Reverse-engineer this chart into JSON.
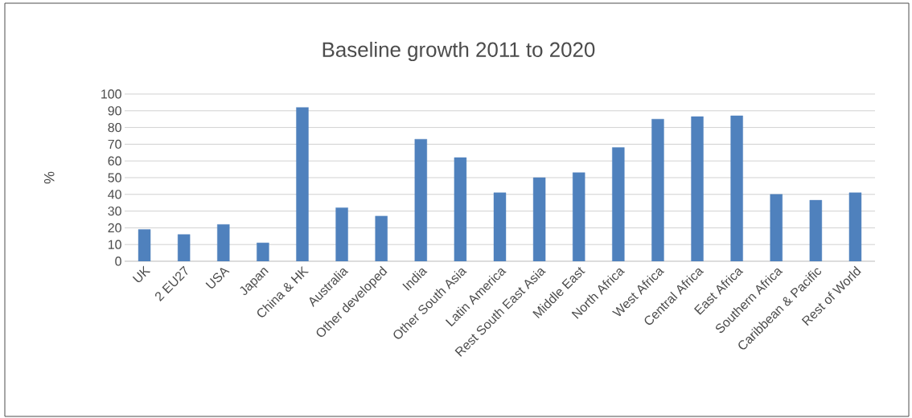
{
  "chart_data": {
    "type": "bar",
    "title": "Baseline growth 2011 to 2020",
    "ylabel": "%",
    "categories": [
      "UK",
      "2 EU27",
      "USA",
      "Japan",
      "China & HK",
      "Australia",
      "Other developed",
      "India",
      "Other South Asia",
      "Latin America",
      "Rest South East Asia",
      "Middle East",
      "North Africa",
      "West Africa",
      "Central Africa",
      "East Africa",
      "Southern Africa",
      "Caribbean & Pacific",
      "Rest of World"
    ],
    "values": [
      19,
      16,
      22,
      11,
      92,
      32,
      27,
      73,
      62,
      41,
      50,
      53,
      68,
      85,
      86.5,
      87,
      40,
      36.5,
      41
    ],
    "color": "#4f81bd",
    "ylim": [
      0,
      100
    ],
    "yticks": [
      0,
      10,
      20,
      30,
      40,
      50,
      60,
      70,
      80,
      90,
      100
    ],
    "grid": "y"
  }
}
